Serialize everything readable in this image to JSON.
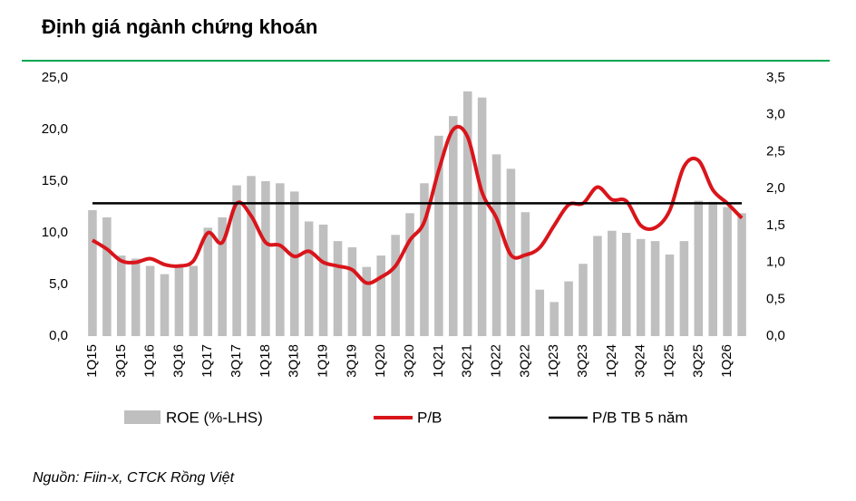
{
  "chart_data": {
    "type": "bar-line",
    "title": "Định giá ngành chứng khoán",
    "source": "Nguồn: Fiin-x, CTCK Rồng Việt",
    "categories": [
      "1Q15",
      null,
      "3Q15",
      null,
      "1Q16",
      null,
      "3Q16",
      null,
      "1Q17",
      null,
      "3Q17",
      null,
      "1Q18",
      null,
      "3Q18",
      null,
      "1Q19",
      null,
      "3Q19",
      null,
      "1Q20",
      null,
      "3Q20",
      null,
      "1Q21",
      null,
      "3Q21",
      null,
      "1Q22",
      null,
      "3Q22",
      null,
      "1Q23",
      null,
      "3Q23",
      null,
      "1Q24",
      null,
      "3Q24",
      null,
      "1Q25",
      null,
      "3Q25",
      null,
      "1Q26",
      null
    ],
    "series": [
      {
        "name": "ROE (%-LHS)",
        "type": "bar",
        "color": "#bfbfbf",
        "values": [
          12.2,
          11.5,
          7.8,
          7.5,
          6.8,
          6.0,
          6.8,
          6.8,
          10.5,
          11.5,
          14.6,
          15.5,
          15.0,
          14.8,
          14.0,
          11.1,
          10.8,
          9.2,
          8.6,
          6.7,
          7.8,
          9.8,
          11.9,
          14.8,
          19.4,
          21.3,
          23.7,
          23.1,
          17.6,
          16.2,
          12.0,
          4.5,
          3.3,
          5.3,
          7.0,
          9.7,
          10.2,
          10.0,
          9.4,
          9.2,
          7.9,
          9.2,
          13.1,
          13.0,
          12.5,
          11.9
        ]
      },
      {
        "name": "P/B",
        "type": "line",
        "axis": "y2",
        "smooth": true,
        "color": "#d9151b",
        "values": [
          1.3,
          1.18,
          1.02,
          1.0,
          1.05,
          0.97,
          0.95,
          1.02,
          1.4,
          1.27,
          1.8,
          1.63,
          1.27,
          1.23,
          1.08,
          1.15,
          1.0,
          0.95,
          0.9,
          0.72,
          0.8,
          0.95,
          1.3,
          1.55,
          2.25,
          2.8,
          2.7,
          1.95,
          1.6,
          1.1,
          1.1,
          1.2,
          1.5,
          1.78,
          1.8,
          2.02,
          1.85,
          1.83,
          1.5,
          1.47,
          1.7,
          2.3,
          2.38,
          1.98,
          1.8,
          1.6
        ]
      },
      {
        "name": "P/B TB 5 năm",
        "type": "line",
        "axis": "y2",
        "color": "#000000",
        "values": [
          1.8,
          1.8,
          1.8,
          1.8,
          1.8,
          1.8,
          1.8,
          1.8,
          1.8,
          1.8,
          1.8,
          1.8,
          1.8,
          1.8,
          1.8,
          1.8,
          1.8,
          1.8,
          1.8,
          1.8,
          1.8,
          1.8,
          1.8,
          1.8,
          1.8,
          1.8,
          1.8,
          1.8,
          1.8,
          1.8,
          1.8,
          1.8,
          1.8,
          1.8,
          1.8,
          1.8,
          1.8,
          1.8,
          1.8,
          1.8,
          1.8,
          1.8,
          1.8,
          1.8,
          1.8,
          1.8
        ]
      }
    ],
    "ylim": [
      0,
      25
    ],
    "yticks": [
      {
        "value": 0,
        "label": "0,0"
      },
      {
        "value": 5,
        "label": "5,0"
      },
      {
        "value": 10,
        "label": "10,0"
      },
      {
        "value": 15,
        "label": "15,0"
      },
      {
        "value": 20,
        "label": "20,0"
      },
      {
        "value": 25,
        "label": "25,0"
      }
    ],
    "y2lim": [
      0,
      3.5
    ],
    "y2ticks": [
      {
        "value": 0,
        "label": "0,0"
      },
      {
        "value": 0.5,
        "label": "0,5"
      },
      {
        "value": 1,
        "label": "1,0"
      },
      {
        "value": 1.5,
        "label": "1,5"
      },
      {
        "value": 2,
        "label": "2,0"
      },
      {
        "value": 2.5,
        "label": "2,5"
      },
      {
        "value": 3,
        "label": "3,0"
      },
      {
        "value": 3.5,
        "label": "3,5"
      }
    ]
  }
}
